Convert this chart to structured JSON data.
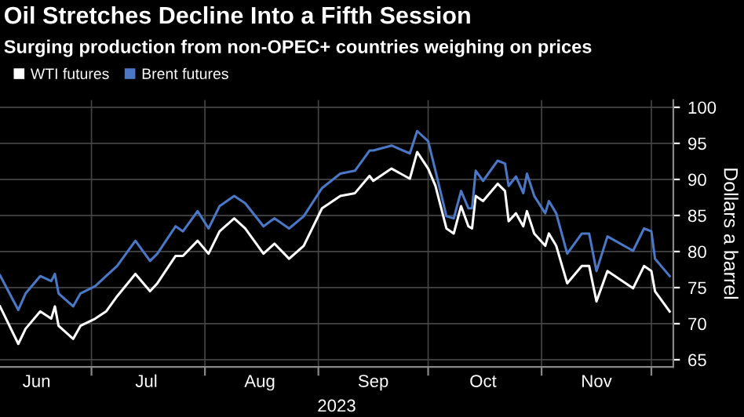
{
  "chart_data": {
    "type": "line",
    "title": "Oil Stretches Decline Into a Fifth Session",
    "subtitle": "Surging production from non-OPEC+ countries weighing on prices",
    "xlabel": "2023",
    "ylabel": "Dollars a barrel",
    "x": [
      "2023-06-06",
      "2023-06-11",
      "2023-06-13",
      "2023-06-17",
      "2023-06-20",
      "2023-06-21",
      "2023-06-22",
      "2023-06-26",
      "2023-06-28",
      "2023-07-02",
      "2023-07-05",
      "2023-07-08",
      "2023-07-13",
      "2023-07-17",
      "2023-07-19",
      "2023-07-24",
      "2023-07-26",
      "2023-07-30",
      "2023-08-02",
      "2023-08-05",
      "2023-08-09",
      "2023-08-12",
      "2023-08-17",
      "2023-08-20",
      "2023-08-24",
      "2023-08-28",
      "2023-09-02",
      "2023-09-07",
      "2023-09-11",
      "2023-09-15",
      "2023-09-16",
      "2023-09-21",
      "2023-09-26",
      "2023-09-28",
      "2023-10-01",
      "2023-10-03",
      "2023-10-06",
      "2023-10-08",
      "2023-10-10",
      "2023-10-12",
      "2023-10-13",
      "2023-10-14",
      "2023-10-16",
      "2023-10-20",
      "2023-10-22",
      "2023-10-23",
      "2023-10-25",
      "2023-10-27",
      "2023-10-28",
      "2023-10-30",
      "2023-11-02",
      "2023-11-03",
      "2023-11-05",
      "2023-11-08",
      "2023-11-12",
      "2023-11-14",
      "2023-11-16",
      "2023-11-19",
      "2023-11-26",
      "2023-11-29",
      "2023-12-01",
      "2023-12-02",
      "2023-12-06"
    ],
    "series": [
      {
        "name": "WTI futures",
        "color": "#ffffff",
        "values": [
          72.4,
          67.2,
          69.3,
          71.7,
          70.7,
          72.4,
          69.7,
          67.9,
          69.7,
          70.7,
          71.7,
          73.8,
          76.9,
          74.5,
          75.6,
          79.4,
          79.4,
          81.5,
          79.7,
          82.8,
          84.6,
          83.2,
          79.7,
          81.1,
          79.0,
          80.8,
          86.0,
          87.7,
          88.1,
          90.5,
          89.8,
          91.5,
          90.1,
          93.8,
          91.5,
          89.1,
          83.2,
          82.5,
          86.3,
          83.5,
          83.2,
          87.7,
          87.0,
          89.4,
          88.4,
          84.2,
          85.3,
          83.5,
          85.6,
          82.5,
          80.8,
          82.5,
          80.8,
          75.6,
          78.0,
          78.0,
          73.1,
          77.3,
          74.9,
          78.0,
          77.3,
          74.5,
          71.7
        ]
      },
      {
        "name": "Brent futures",
        "color": "#4a78c6",
        "values": [
          76.7,
          71.9,
          74.2,
          76.6,
          75.9,
          76.9,
          74.2,
          72.4,
          74.2,
          75.2,
          76.6,
          78.0,
          81.5,
          78.7,
          79.7,
          83.5,
          82.8,
          85.6,
          83.2,
          86.3,
          87.7,
          86.7,
          83.5,
          84.6,
          83.2,
          84.9,
          88.8,
          90.8,
          91.2,
          94.0,
          94.0,
          94.7,
          93.6,
          96.7,
          95.3,
          91.2,
          84.9,
          84.6,
          88.4,
          86.0,
          86.0,
          91.2,
          89.8,
          92.6,
          92.2,
          89.1,
          90.4,
          88.1,
          90.8,
          87.7,
          85.3,
          87.0,
          85.3,
          79.7,
          82.5,
          82.5,
          77.3,
          82.1,
          80.1,
          83.2,
          82.8,
          79.0,
          76.6
        ]
      }
    ],
    "xlim": [
      "2023-06-06",
      "2023-12-07"
    ],
    "xticks": [
      {
        "value": "2023-06-16",
        "label": "Jun"
      },
      {
        "value": "2023-07-01",
        "label": null
      },
      {
        "value": "2023-07-16",
        "label": "Jul"
      },
      {
        "value": "2023-08-01",
        "label": null
      },
      {
        "value": "2023-08-16",
        "label": "Aug"
      },
      {
        "value": "2023-09-01",
        "label": null
      },
      {
        "value": "2023-09-16",
        "label": "Sep"
      },
      {
        "value": "2023-10-01",
        "label": null
      },
      {
        "value": "2023-10-16",
        "label": "Oct"
      },
      {
        "value": "2023-11-01",
        "label": null
      },
      {
        "value": "2023-11-16",
        "label": "Nov"
      },
      {
        "value": "2023-12-01",
        "label": null
      }
    ],
    "ylim": [
      64,
      101
    ],
    "yticks": [
      65,
      70,
      75,
      80,
      85,
      90,
      95,
      100
    ],
    "grid": true,
    "legend": "top left",
    "marker": "none",
    "line_style": "solid"
  }
}
